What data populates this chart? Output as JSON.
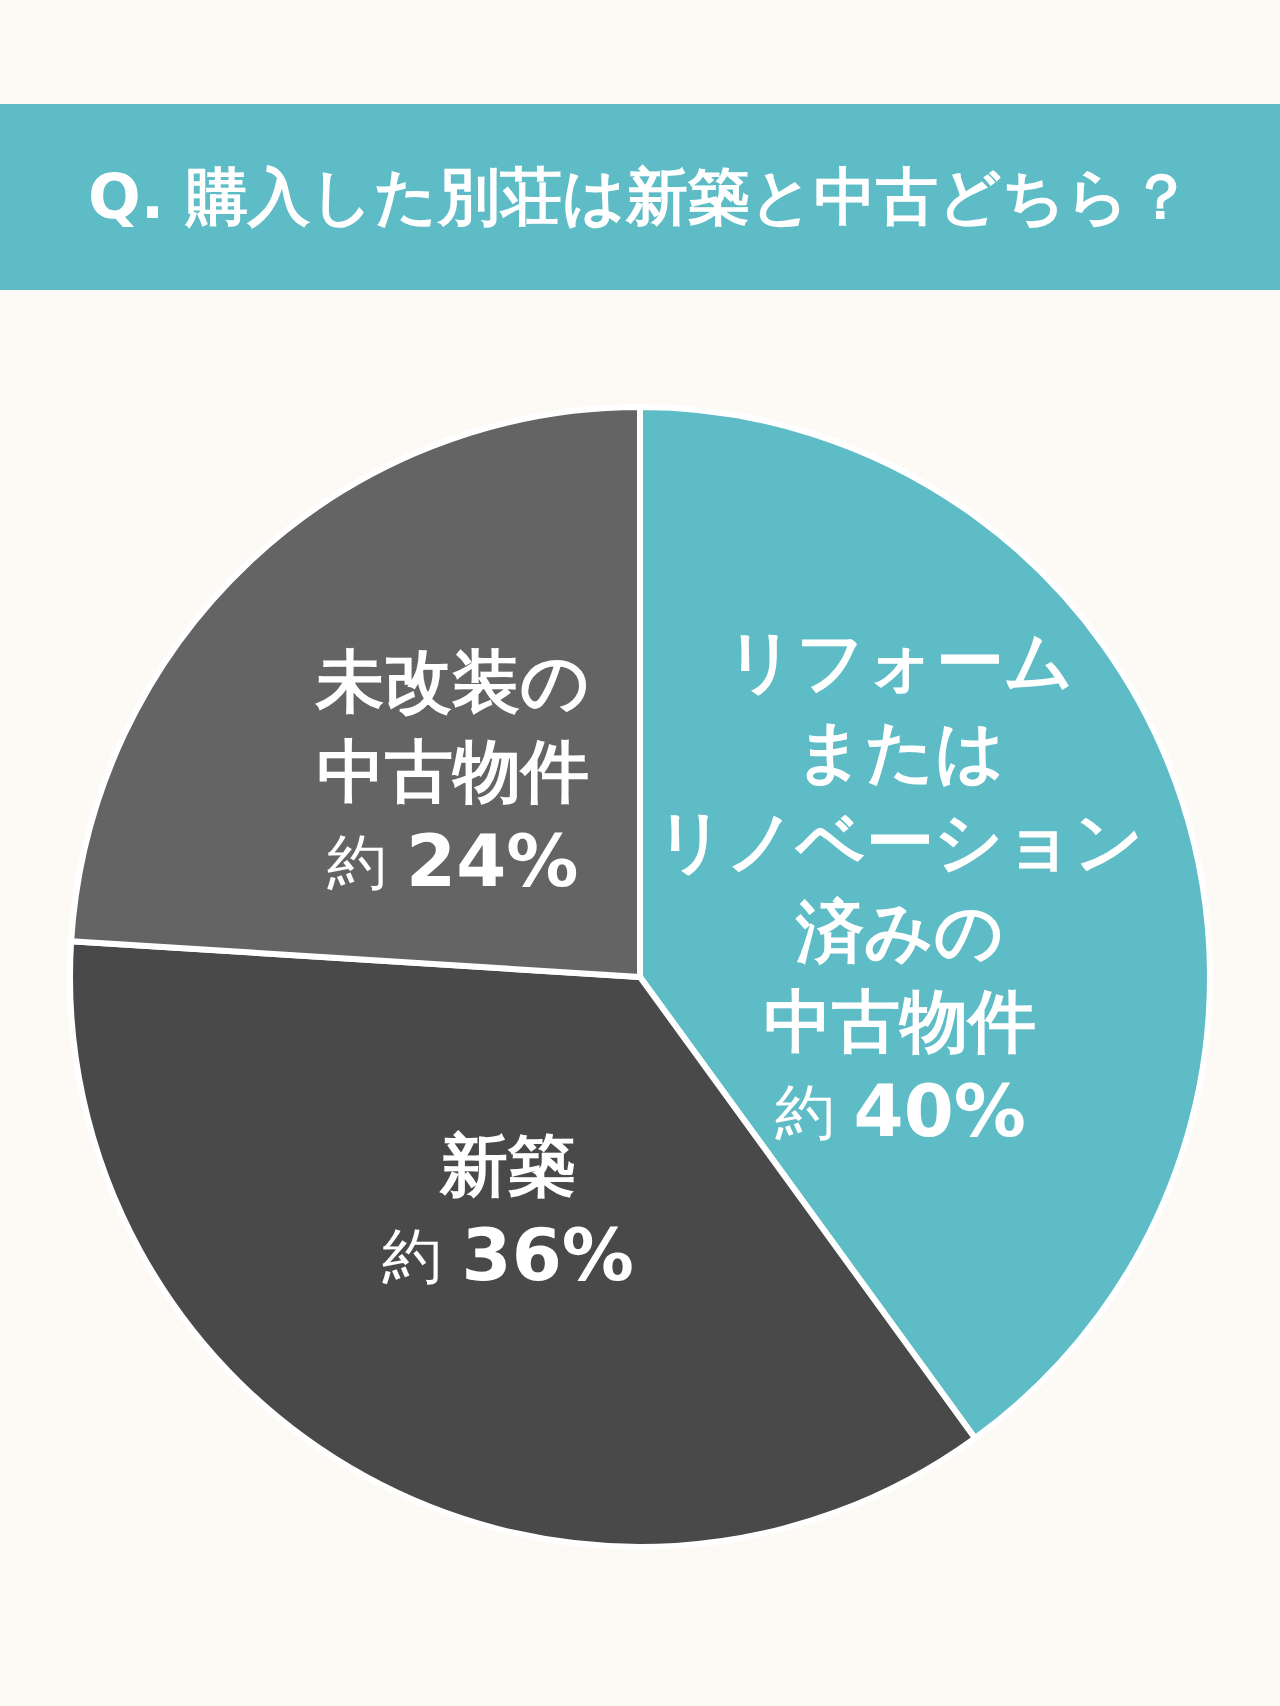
{
  "chart_data": {
    "type": "pie",
    "title": "Q. 購入した別荘は新築と中古どちら？",
    "categories": [
      "リフォームまたはリノベーション済みの中古物件",
      "新築",
      "未改装の中古物件"
    ],
    "values": [
      40,
      36,
      24
    ],
    "colors": [
      "#5ebcc6",
      "#494949",
      "#646464"
    ],
    "value_labels": [
      "約 40%",
      "約 36%",
      "約 24%"
    ]
  }
}
